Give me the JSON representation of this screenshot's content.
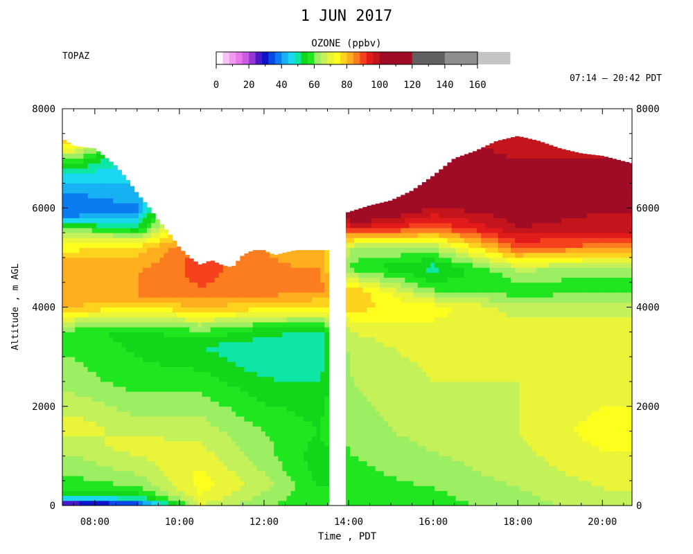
{
  "chart_data": {
    "type": "heatmap",
    "title": "1 JUN 2017",
    "instrument": "TOPAZ",
    "time_range": "07:14 – 20:42 PDT",
    "colorbar": {
      "title": "OZONE (ppbv)",
      "range": [
        0,
        160
      ],
      "tick_labels": [
        "0",
        "20",
        "40",
        "60",
        "80",
        "100",
        "120",
        "140",
        "160"
      ],
      "fine_step": 4,
      "fine_range": [
        0,
        100
      ],
      "coarse_step": 20,
      "coarse_range": [
        100,
        160
      ],
      "colors": [
        "#ffffff",
        "#f7c2f7",
        "#f29af2",
        "#e978ea",
        "#c95ce2",
        "#9538d3",
        "#4b18c8",
        "#0d13c8",
        "#0a48e6",
        "#0a7cf0",
        "#17b0f3",
        "#1ad8f0",
        "#0ee6a6",
        "#13d61a",
        "#20e620",
        "#9cee62",
        "#c4f05a",
        "#eaf53a",
        "#ffff1e",
        "#ffd21e",
        "#ffae1e",
        "#fc7d20",
        "#f6411e",
        "#e21a1a",
        "#c4141c",
        "#a00c26",
        "#606060",
        "#8e8e8e",
        "#c4c4c4"
      ]
    },
    "xlabel": "Time , PDT",
    "ylabel": "Altitude , m AGL",
    "x_unit": "hours PDT",
    "y_unit": "m AGL",
    "xlim": [
      7.233,
      20.7
    ],
    "ylim": [
      0,
      8000
    ],
    "x_tick_labels": [
      "08:00",
      "10:00",
      "12:00",
      "14:00",
      "16:00",
      "18:00",
      "20:00"
    ],
    "x_ticks": [
      8,
      10,
      12,
      14,
      16,
      18,
      20
    ],
    "y_tick_labels": [
      "0",
      "2000",
      "4000",
      "6000",
      "8000"
    ],
    "y_ticks": [
      0,
      2000,
      4000,
      6000,
      8000
    ],
    "data_gap": [
      13.5,
      13.933
    ],
    "top_of_data": {
      "t": [
        7.233,
        7.5,
        8.0,
        8.5,
        8.75,
        9.0,
        9.25,
        9.5,
        9.75,
        10.0,
        10.25,
        10.5,
        10.75,
        11.0,
        11.25,
        11.5,
        11.75,
        12.0,
        12.25,
        12.5,
        12.75,
        13.0,
        13.25,
        13.5,
        13.933,
        14.5,
        15.0,
        15.5,
        16.0,
        16.5,
        17.0,
        17.5,
        18.0,
        18.5,
        19.0,
        19.5,
        20.0,
        20.7
      ],
      "alt": [
        7400,
        7250,
        7200,
        6850,
        6600,
        6300,
        6050,
        5750,
        5500,
        5200,
        5000,
        4850,
        4950,
        4850,
        4800,
        5050,
        5150,
        5150,
        5050,
        5100,
        5150,
        5150,
        5150,
        5150,
        5900,
        6050,
        6150,
        6350,
        6650,
        7000,
        7150,
        7350,
        7450,
        7350,
        7200,
        7100,
        7050,
        6900
      ]
    },
    "profiles": [
      {
        "t": 7.5,
        "alt": [
          0,
          100,
          150,
          250,
          400,
          800,
          1600,
          2500,
          3500,
          3800,
          4000,
          4500,
          5000,
          5500,
          5800,
          6200,
          6700,
          7000,
          7300
        ],
        "ozone": [
          20,
          34,
          46,
          52,
          58,
          62,
          70,
          62,
          58,
          70,
          80,
          84,
          80,
          66,
          40,
          38,
          48,
          60,
          76
        ]
      },
      {
        "t": 9.0,
        "alt": [
          0,
          100,
          200,
          400,
          700,
          1200,
          1800,
          2500,
          3500,
          3800,
          4200,
          4700,
          5200,
          5600,
          6000,
          6300
        ],
        "ozone": [
          28,
          44,
          54,
          60,
          65,
          70,
          64,
          58,
          54,
          68,
          84,
          84,
          78,
          52,
          38,
          44
        ]
      },
      {
        "t": 10.5,
        "alt": [
          0,
          200,
          500,
          1000,
          1800,
          2500,
          3200,
          3600,
          4000,
          4400,
          4800
        ],
        "ozone": [
          68,
          72,
          74,
          70,
          64,
          58,
          52,
          62,
          80,
          88,
          90
        ]
      },
      {
        "t": 12.0,
        "alt": [
          0,
          400,
          900,
          1500,
          2200,
          2800,
          3200,
          3600,
          3900,
          4300,
          5100
        ],
        "ozone": [
          60,
          66,
          62,
          60,
          55,
          50,
          48,
          56,
          74,
          86,
          84
        ]
      },
      {
        "t": 13.3,
        "alt": [
          0,
          500,
          1000,
          1500,
          2200,
          2800,
          3400,
          3700,
          4000,
          4400,
          5100
        ],
        "ozone": [
          58,
          55,
          54,
          56,
          54,
          50,
          48,
          60,
          76,
          86,
          82
        ]
      },
      {
        "t": 14.1,
        "alt": [
          0,
          400,
          1000,
          1500,
          2500,
          3500,
          3900,
          4300,
          4800,
          5200,
          5600,
          5900
        ],
        "ozone": [
          56,
          58,
          60,
          62,
          64,
          68,
          76,
          80,
          58,
          64,
          96,
          108
        ]
      },
      {
        "t": 16.0,
        "alt": [
          0,
          700,
          1500,
          2500,
          3500,
          4000,
          4400,
          4800,
          5200,
          5600,
          6000,
          6500
        ],
        "ozone": [
          58,
          62,
          66,
          68,
          70,
          74,
          58,
          50,
          64,
          88,
          100,
          104
        ]
      },
      {
        "t": 18.0,
        "alt": [
          0,
          700,
          1500,
          2500,
          3500,
          4000,
          4300,
          4700,
          5200,
          5600,
          6200,
          7000,
          7400
        ],
        "ozone": [
          62,
          66,
          68,
          68,
          70,
          66,
          58,
          62,
          88,
          100,
          104,
          100,
          96
        ]
      },
      {
        "t": 20.0,
        "alt": [
          0,
          700,
          1500,
          2500,
          3500,
          4000,
          4400,
          4800,
          5200,
          5600,
          6200,
          6900
        ],
        "ozone": [
          66,
          70,
          74,
          70,
          70,
          66,
          58,
          62,
          86,
          98,
          102,
          100
        ]
      }
    ],
    "grid": false,
    "legend": "colorbar-top"
  }
}
